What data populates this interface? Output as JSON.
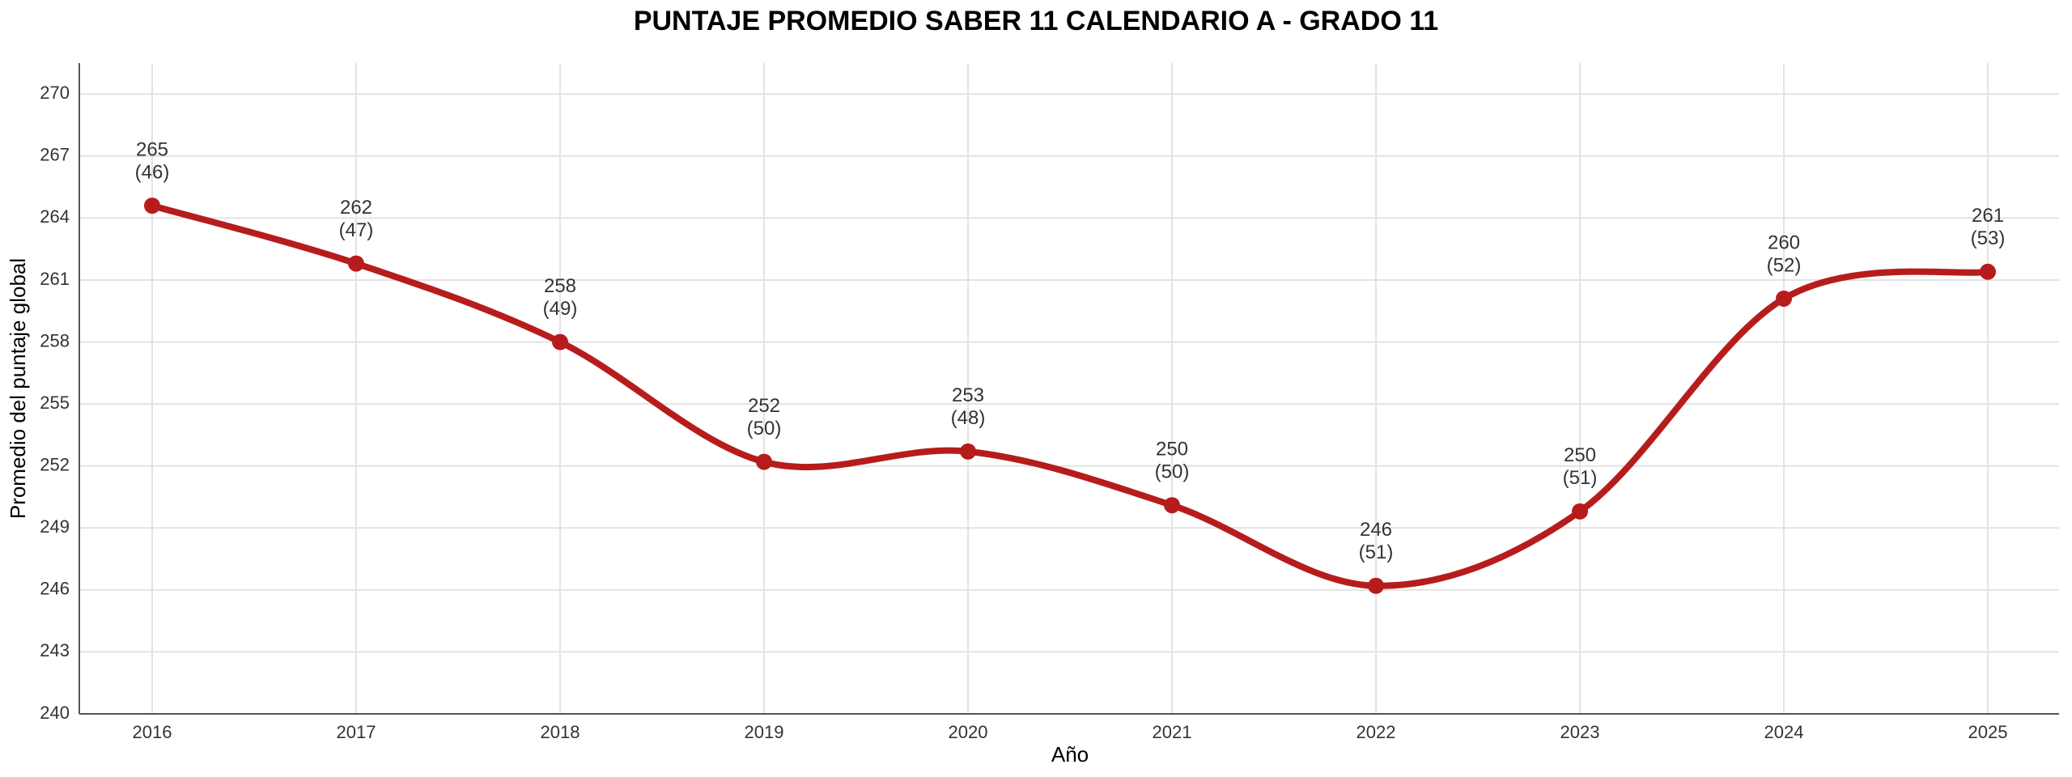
{
  "chart_data": {
    "type": "line",
    "title": "PUNTAJE PROMEDIO SABER 11 CALENDARIO A - GRADO 11",
    "x_label": "Año",
    "y_label": "Promedio del puntaje global",
    "categories": [
      "2016",
      "2017",
      "2018",
      "2019",
      "2020",
      "2021",
      "2022",
      "2023",
      "2024",
      "2025"
    ],
    "series": [
      {
        "name": "Promedio",
        "color": "#b71c1c",
        "values": [
          264.6,
          261.8,
          258.0,
          252.2,
          252.7,
          250.1,
          246.2,
          249.8,
          260.1,
          261.4
        ],
        "value_labels": [
          "265",
          "262",
          "258",
          "252",
          "253",
          "250",
          "246",
          "250",
          "260",
          "261"
        ],
        "count_labels": [
          "(46)",
          "(47)",
          "(49)",
          "(50)",
          "(48)",
          "(50)",
          "(51)",
          "(51)",
          "(52)",
          "(53)"
        ]
      }
    ],
    "ylim": [
      240,
      271.5
    ],
    "yticks": [
      240,
      243,
      246,
      249,
      252,
      255,
      258,
      261,
      264,
      267,
      270
    ],
    "grid": true
  }
}
